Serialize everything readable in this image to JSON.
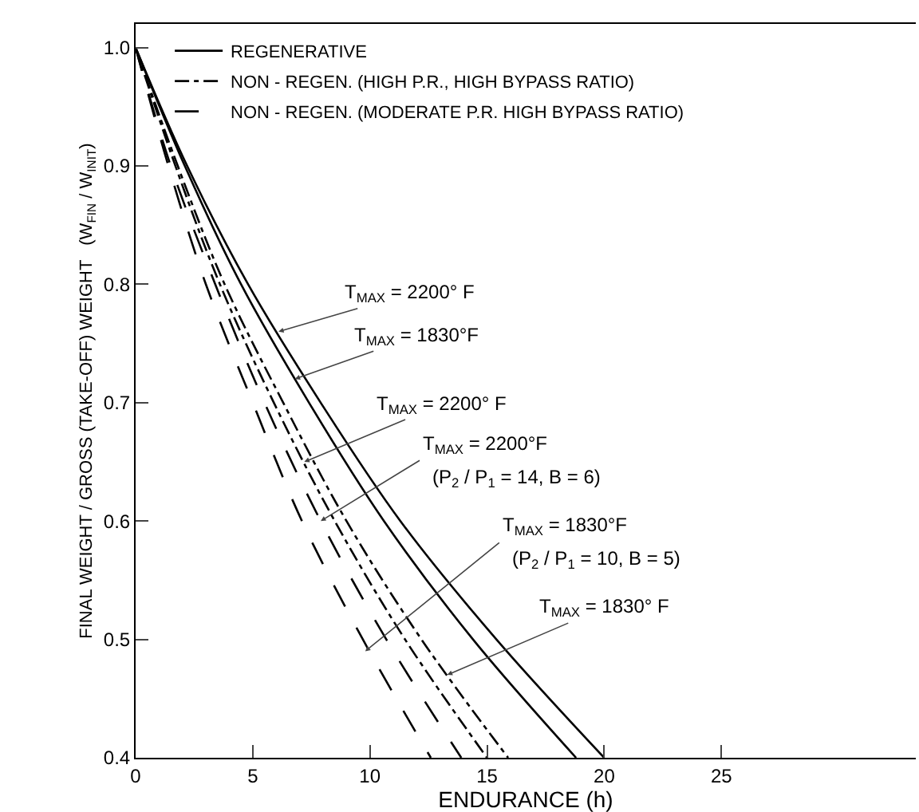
{
  "chart_data": {
    "type": "line",
    "xlabel": "ENDURANCE (h)",
    "ylabel": "FINAL WEIGHT / GROSS (TAKE-OFF) WEIGHT   (W$_{FIN}$ / W$_{INIT}$)",
    "xlim": [
      0,
      33.3
    ],
    "ylim": [
      0.4,
      1.02
    ],
    "xticks": [
      0,
      5,
      10,
      15,
      20,
      25
    ],
    "yticks": [
      {
        "value": 0.4,
        "label": "0.4"
      },
      0.5,
      0.6,
      0.7,
      0.8,
      0.9,
      {
        "value": 1.0,
        "label": "1.0"
      }
    ],
    "grid": false,
    "legend": "top left",
    "marker": "none",
    "series": [
      {
        "name": "REGENERATIVE",
        "color": "#000000",
        "line_style": "solid",
        "x": [
          0,
          2.2,
          4.8,
          7.9,
          11.3,
          15.4,
          20.0
        ],
        "values": [
          1.0,
          0.9,
          0.8,
          0.7,
          0.6,
          0.5,
          0.4
        ]
      },
      {
        "color": "#000000",
        "line_style": "solid",
        "x": [
          0,
          2.1,
          4.5,
          7.4,
          10.6,
          14.4,
          18.8
        ],
        "values": [
          1.0,
          0.9,
          0.8,
          0.7,
          0.6,
          0.5,
          0.4
        ]
      },
      {
        "name": "NON - REGEN. (HIGH P.R., HIGH BYPASS RATIO)",
        "color": "#000000",
        "line_style": "dashdot",
        "x": [
          0,
          1.7,
          3.6,
          5.9,
          8.5,
          11.5,
          15.0
        ],
        "values": [
          1.0,
          0.9,
          0.8,
          0.7,
          0.6,
          0.5,
          0.4
        ]
      },
      {
        "color": "#000000",
        "line_style": "dashdot",
        "x": [
          0,
          1.8,
          3.8,
          6.3,
          9.0,
          12.2,
          15.9
        ],
        "values": [
          1.0,
          0.9,
          0.8,
          0.7,
          0.6,
          0.5,
          0.4
        ]
      },
      {
        "name": "NON - REGEN. (MODERATE P.R. HIGH BYPASS RATIO)",
        "color": "#000000",
        "line_style": "dashed",
        "x": [
          0,
          1.5,
          3.4,
          5.5,
          7.9,
          10.7,
          13.9
        ],
        "values": [
          1.0,
          0.9,
          0.8,
          0.7,
          0.6,
          0.5,
          0.4
        ]
      },
      {
        "color": "#000000",
        "line_style": "dashed",
        "x": [
          0,
          1.4,
          3.0,
          5.0,
          7.1,
          9.7,
          12.6
        ],
        "values": [
          1.0,
          0.9,
          0.8,
          0.7,
          0.6,
          0.5,
          0.4
        ]
      }
    ],
    "annotations": [
      {
        "text": "T$_{MAX}$ = 2200° F",
        "x": 6.1,
        "y": 0.76
      },
      {
        "text": "T$_{MAX}$ = 1830°F",
        "x": 6.8,
        "y": 0.72
      },
      {
        "text": "T$_{MAX}$ = 2200° F",
        "x": 7.2,
        "y": 0.65
      },
      {
        "text": "T$_{MAX}$ = 2200°F",
        "x": 7.9,
        "y": 0.6
      },
      "(P$_{2}$ / P$_{1}$ = 14, B = 6)",
      {
        "text": "T$_{MAX}$ = 1830°F",
        "x": 9.8,
        "y": 0.49
      },
      "(P$_{2}$ / P$_{1}$ = 10, B = 5)",
      {
        "text": "T$_{MAX}$ = 1830° F",
        "x": 13.3,
        "y": 0.47
      }
    ]
  }
}
